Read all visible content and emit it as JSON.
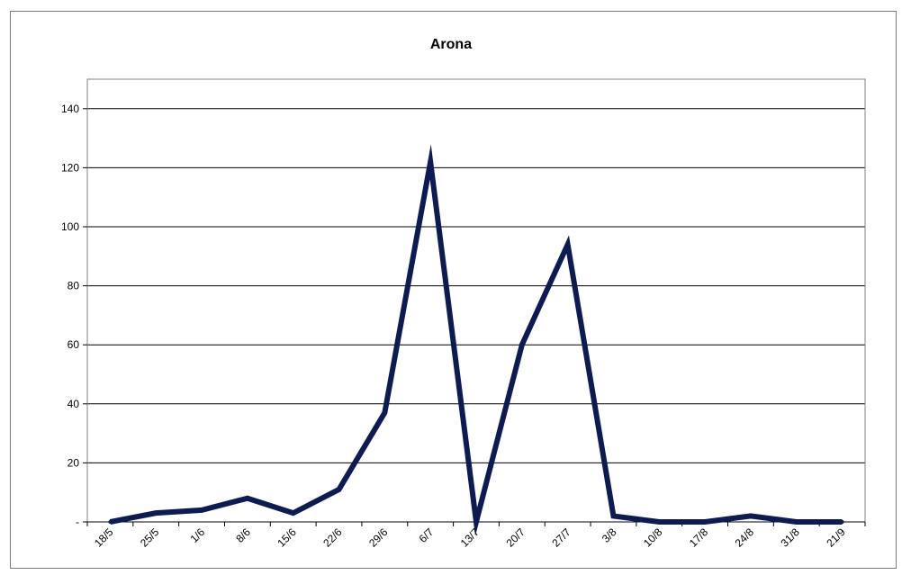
{
  "chart_data": {
    "type": "line",
    "title": "Arona",
    "xlabel": "",
    "ylabel": "",
    "x": [
      "18/5",
      "25/5",
      "1/6",
      "8/6",
      "15/6",
      "22/6",
      "29/6",
      "6/7",
      "13/7",
      "20/7",
      "27/7",
      "3/8",
      "10/8",
      "17/8",
      "24/8",
      "31/8",
      "21/9"
    ],
    "series": [
      {
        "values": [
          0,
          3,
          4,
          8,
          3,
          11,
          37,
          122,
          0,
          60,
          94,
          2,
          0,
          0,
          2,
          0,
          0
        ]
      }
    ],
    "ylim": [
      0,
      150
    ],
    "yticks": [
      0,
      20,
      40,
      60,
      80,
      100,
      120,
      140
    ],
    "ytick_labels": [
      "-",
      "20",
      "40",
      "60",
      "80",
      "100",
      "120",
      "140"
    ],
    "grid": true,
    "line_color": "#0d1b54"
  }
}
